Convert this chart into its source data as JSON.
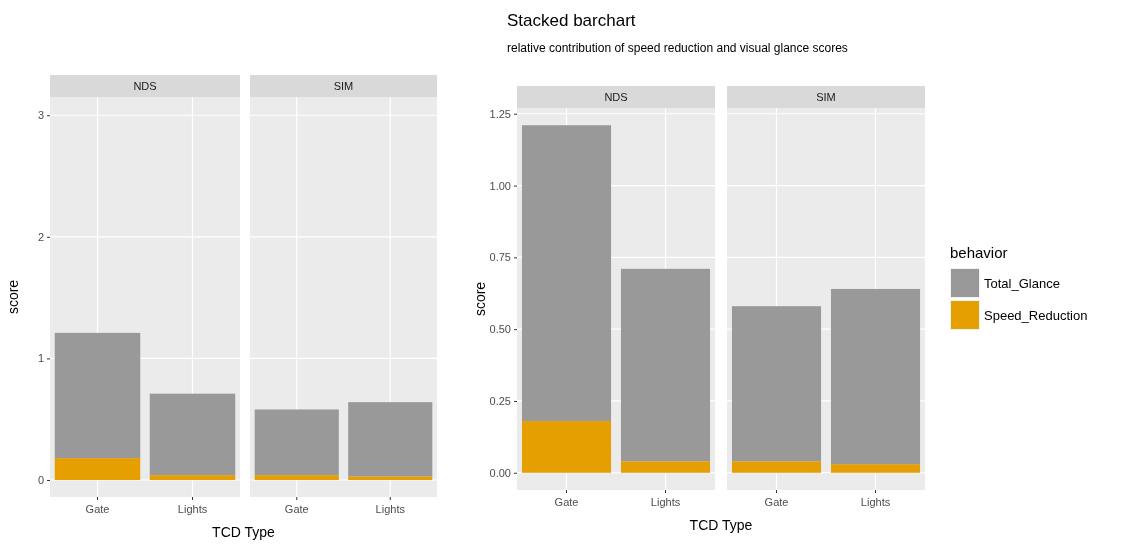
{
  "chart_data": [
    {
      "type": "bar",
      "title": "NDS",
      "xlabel": "TCD Type",
      "ylabel": "score",
      "categories": [
        "Gate",
        "Lights"
      ],
      "stacked": true,
      "grid": true,
      "ylim": [
        -0.14,
        3.15
      ],
      "yticks": [
        0,
        1,
        2,
        3
      ],
      "series": [
        {
          "color": "#e69f00",
          "values": [
            0.18,
            0.04
          ]
        },
        {
          "color": "#999999",
          "values": [
            1.03,
            0.67
          ]
        }
      ]
    },
    {
      "type": "bar",
      "title": "SIM",
      "categories": [
        "Gate",
        "Lights"
      ],
      "stacked": true,
      "grid": true,
      "ylim": [
        -0.14,
        3.15
      ],
      "yticks": [
        0,
        1,
        2,
        3
      ],
      "tick_labels": "x",
      "series": [
        {
          "color": "#e69f00",
          "values": [
            0.04,
            0.03
          ]
        },
        {
          "color": "#999999",
          "values": [
            0.54,
            0.61
          ]
        }
      ]
    },
    {
      "type": "other",
      "title": "Stacked barchart",
      "subtitle": "relative contribution of speed reduction and visual glance scores"
    },
    {
      "type": "bar",
      "title": "NDS",
      "xlabel": "TCD Type",
      "ylabel": "score",
      "categories": [
        "Gate",
        "Lights"
      ],
      "stacked": true,
      "grid": true,
      "ylim": [
        -0.06,
        1.27
      ],
      "yticks": [
        {
          "value": 0,
          "label": "0.00"
        },
        {
          "value": 0.25,
          "label": "0.25"
        },
        {
          "value": 0.5,
          "label": "0.50"
        },
        {
          "value": 0.75,
          "label": "0.75"
        },
        {
          "value": 1,
          "label": "1.00"
        },
        {
          "value": 1.25,
          "label": "1.25"
        }
      ],
      "series": [
        {
          "color": "#e69f00",
          "values": [
            0.18,
            0.04
          ]
        },
        {
          "color": "#999999",
          "values": [
            1.03,
            0.67
          ]
        }
      ]
    },
    {
      "type": "bar",
      "title": "SIM",
      "categories": [
        "Gate",
        "Lights"
      ],
      "stacked": true,
      "grid": true,
      "ylim": [
        -0.06,
        1.27
      ],
      "yticks": [
        0,
        0.25,
        0.5,
        0.75,
        1,
        1.25
      ],
      "tick_labels": "x",
      "legend": "right",
      "legend_title": "behavior",
      "series": [
        {
          "name": "Speed_Reduction",
          "color": "#e69f00",
          "values": [
            0.04,
            0.03
          ]
        },
        {
          "name": "Total_Glance",
          "color": "#999999",
          "values": [
            0.54,
            0.61
          ]
        }
      ]
    }
  ]
}
